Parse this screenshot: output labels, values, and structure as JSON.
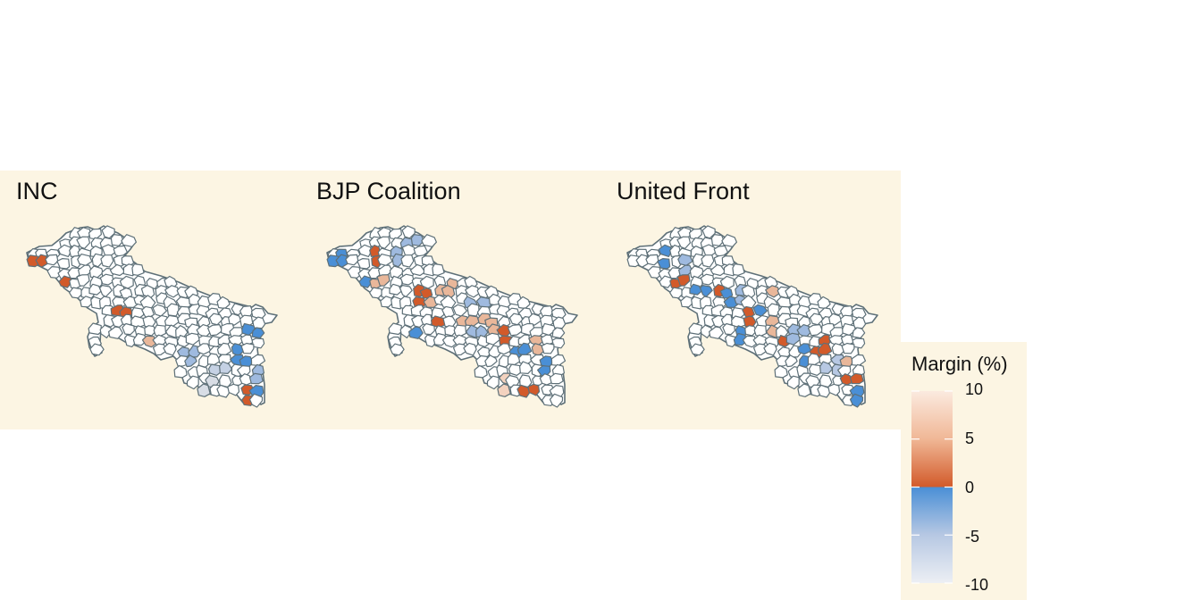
{
  "panels": [
    {
      "title": "INC",
      "highlights": [
        {
          "u": 0.05,
          "v": 0.22,
          "color": "#d25a2a"
        },
        {
          "u": 0.15,
          "v": 0.35,
          "color": "#d25a2a"
        },
        {
          "u": 0.12,
          "v": 0.3,
          "color": "#4a8fd6"
        },
        {
          "u": 0.37,
          "v": 0.48,
          "color": "#d25a2a"
        },
        {
          "u": 0.5,
          "v": 0.65,
          "color": "#e9b79a"
        },
        {
          "u": 0.65,
          "v": 0.73,
          "color": "#9fbadf"
        },
        {
          "u": 0.28,
          "v": 0.82,
          "color": "#b7c8e3"
        },
        {
          "u": 0.72,
          "v": 0.9,
          "color": "#d8dde5"
        },
        {
          "u": 0.78,
          "v": 0.8,
          "color": "#c5d1e4"
        },
        {
          "u": 0.86,
          "v": 0.72,
          "color": "#4a8fd6"
        },
        {
          "u": 0.9,
          "v": 0.6,
          "color": "#4a8fd6"
        },
        {
          "u": 0.92,
          "v": 0.82,
          "color": "#9fbadf"
        },
        {
          "u": 0.88,
          "v": 0.94,
          "color": "#d25a2a"
        },
        {
          "u": 0.93,
          "v": 0.92,
          "color": "#4a8fd6"
        }
      ]
    },
    {
      "title": "BJP Coalition",
      "highlights": [
        {
          "u": 0.05,
          "v": 0.2,
          "color": "#4a8fd6"
        },
        {
          "u": 0.2,
          "v": 0.18,
          "color": "#d25a2a"
        },
        {
          "u": 0.28,
          "v": 0.15,
          "color": "#9fbadf"
        },
        {
          "u": 0.33,
          "v": 0.08,
          "color": "#9fbadf"
        },
        {
          "u": 0.13,
          "v": 0.3,
          "color": "#4a8fd6"
        },
        {
          "u": 0.22,
          "v": 0.33,
          "color": "#e9b79a"
        },
        {
          "u": 0.38,
          "v": 0.4,
          "color": "#d25a2a"
        },
        {
          "u": 0.42,
          "v": 0.45,
          "color": "#e9b79a"
        },
        {
          "u": 0.3,
          "v": 0.5,
          "color": "#9fbadf"
        },
        {
          "u": 0.35,
          "v": 0.6,
          "color": "#4a8fd6"
        },
        {
          "u": 0.45,
          "v": 0.55,
          "color": "#d25a2a"
        },
        {
          "u": 0.55,
          "v": 0.52,
          "color": "#e9b79a"
        },
        {
          "u": 0.6,
          "v": 0.62,
          "color": "#9fbadf"
        },
        {
          "u": 0.5,
          "v": 0.7,
          "color": "#4a8fd6"
        },
        {
          "u": 0.22,
          "v": 0.75,
          "color": "#e9a07a"
        },
        {
          "u": 0.65,
          "v": 0.55,
          "color": "#e9b79a"
        },
        {
          "u": 0.72,
          "v": 0.62,
          "color": "#d25a2a"
        },
        {
          "u": 0.78,
          "v": 0.7,
          "color": "#4a8fd6"
        },
        {
          "u": 0.84,
          "v": 0.66,
          "color": "#e9b79a"
        },
        {
          "u": 0.7,
          "v": 0.88,
          "color": "#f3d2bf"
        },
        {
          "u": 0.8,
          "v": 0.92,
          "color": "#d25a2a"
        },
        {
          "u": 0.88,
          "v": 0.8,
          "color": "#4a8fd6"
        },
        {
          "u": 0.6,
          "v": 0.42,
          "color": "#9fbadf"
        },
        {
          "u": 0.48,
          "v": 0.35,
          "color": "#e9b79a"
        }
      ]
    },
    {
      "title": "United Front",
      "highlights": [
        {
          "u": 0.17,
          "v": 0.18,
          "color": "#4a8fd6"
        },
        {
          "u": 0.25,
          "v": 0.22,
          "color": "#9fbadf"
        },
        {
          "u": 0.2,
          "v": 0.32,
          "color": "#d25a2a"
        },
        {
          "u": 0.3,
          "v": 0.35,
          "color": "#4a8fd6"
        },
        {
          "u": 0.35,
          "v": 0.38,
          "color": "#d25a2a"
        },
        {
          "u": 0.4,
          "v": 0.42,
          "color": "#4a8fd6"
        },
        {
          "u": 0.45,
          "v": 0.4,
          "color": "#9fbadf"
        },
        {
          "u": 0.24,
          "v": 0.48,
          "color": "#e9b79a"
        },
        {
          "u": 0.5,
          "v": 0.52,
          "color": "#d25a2a"
        },
        {
          "u": 0.55,
          "v": 0.48,
          "color": "#4a8fd6"
        },
        {
          "u": 0.58,
          "v": 0.57,
          "color": "#e9b79a"
        },
        {
          "u": 0.22,
          "v": 0.7,
          "color": "#9fbadf"
        },
        {
          "u": 0.62,
          "v": 0.65,
          "color": "#d25a2a"
        },
        {
          "u": 0.68,
          "v": 0.6,
          "color": "#9fbadf"
        },
        {
          "u": 0.72,
          "v": 0.72,
          "color": "#4a8fd6"
        },
        {
          "u": 0.78,
          "v": 0.68,
          "color": "#d25a2a"
        },
        {
          "u": 0.82,
          "v": 0.78,
          "color": "#b7c8e3"
        },
        {
          "u": 0.88,
          "v": 0.75,
          "color": "#e9b79a"
        },
        {
          "u": 0.9,
          "v": 0.88,
          "color": "#d25a2a"
        },
        {
          "u": 0.92,
          "v": 0.94,
          "color": "#4a8fd6"
        },
        {
          "u": 0.6,
          "v": 0.4,
          "color": "#e9b79a"
        },
        {
          "u": 0.45,
          "v": 0.6,
          "color": "#4a8fd6"
        }
      ]
    }
  ],
  "legend": {
    "title": "Margin (%)",
    "ticks": [
      "10",
      "5",
      "0",
      "-5",
      "-10"
    ],
    "tick_values": [
      10,
      5,
      0,
      -5,
      -10
    ],
    "positive_colors": [
      "#fbeadf",
      "#f0b796",
      "#d25a2a"
    ],
    "negative_colors": [
      "#4a8fd6",
      "#b7c8e3",
      "#eceff4"
    ]
  },
  "colors": {
    "background": "#fcf5e3",
    "district_border": "#5e7078",
    "district_fill": "#ffffff"
  }
}
